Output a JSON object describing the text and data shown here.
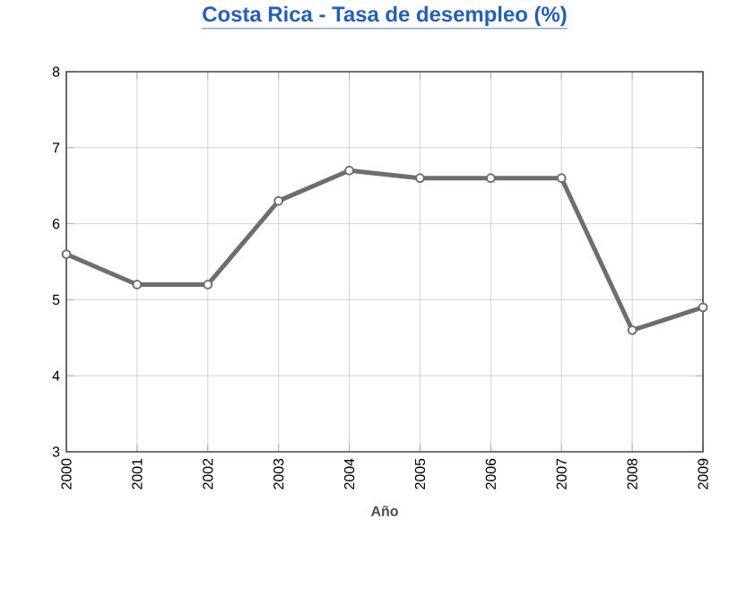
{
  "chart_data": {
    "type": "line",
    "title": "Costa Rica - Tasa de desempleo (%)",
    "xlabel": "Año",
    "categories": [
      "2000",
      "2001",
      "2002",
      "2003",
      "2004",
      "2005",
      "2006",
      "2007",
      "2008",
      "2009"
    ],
    "values": [
      5.6,
      5.2,
      5.2,
      6.3,
      6.7,
      6.6,
      6.6,
      6.6,
      4.6,
      4.9
    ],
    "color": "#6e6e6e",
    "ylim": [
      3,
      8
    ],
    "yticks": [
      3,
      4,
      5,
      6,
      7,
      8
    ],
    "grid": true,
    "marker": "circle",
    "line_style": "solid"
  }
}
